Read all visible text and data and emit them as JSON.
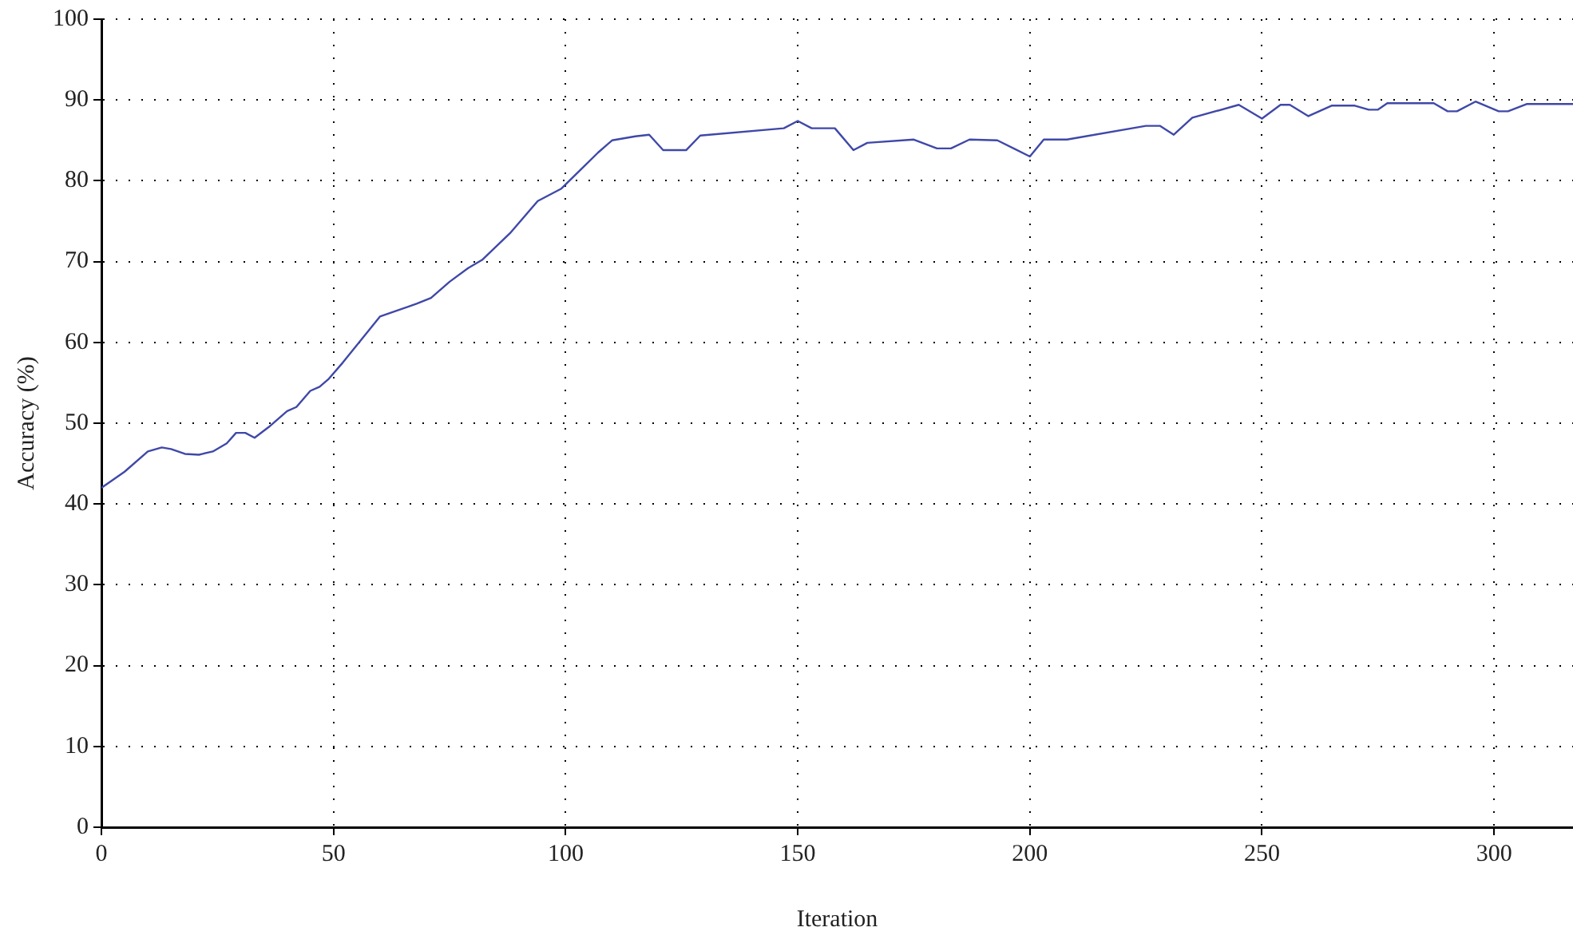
{
  "chart_data": {
    "type": "line",
    "xlabel": "Iteration",
    "ylabel": "Accuracy (%)",
    "x": [
      0,
      5,
      10,
      13,
      15,
      18,
      21,
      24,
      27,
      29,
      31,
      33,
      36,
      40,
      42,
      45,
      47,
      49,
      52,
      60,
      68,
      71,
      75,
      79,
      82,
      88,
      94,
      99,
      104,
      107,
      110,
      115,
      118,
      121,
      126,
      129,
      147,
      150,
      153,
      158,
      162,
      165,
      175,
      180,
      183,
      187,
      193,
      200,
      203,
      208,
      225,
      228,
      231,
      235,
      245,
      250,
      254,
      256,
      260,
      265,
      270,
      273,
      275,
      277,
      287,
      290,
      292,
      296,
      301,
      303,
      307,
      317
    ],
    "series": [
      {
        "color": "#3f48a8",
        "values": [
          42,
          44,
          46.5,
          47,
          46.8,
          46.2,
          46.1,
          46.5,
          47.5,
          48.8,
          48.8,
          48.2,
          49.5,
          51.5,
          52,
          54,
          54.5,
          55.5,
          57.5,
          63.2,
          64.8,
          65.5,
          67.5,
          69.2,
          70.2,
          73.5,
          77.5,
          79,
          81.8,
          83.5,
          85,
          85.5,
          85.7,
          83.8,
          83.8,
          85.6,
          86.5,
          87.4,
          86.5,
          86.5,
          83.8,
          84.7,
          85.1,
          84,
          84,
          85.1,
          85,
          83,
          85.1,
          85.1,
          86.8,
          86.8,
          85.7,
          87.8,
          89.4,
          87.7,
          89.4,
          89.4,
          88,
          89.3,
          89.3,
          88.8,
          88.8,
          89.6,
          89.6,
          88.6,
          88.6,
          89.8,
          88.6,
          88.6,
          89.5,
          89.5
        ]
      }
    ],
    "xlim": [
      0,
      317
    ],
    "xticks": [
      0,
      50,
      100,
      150,
      200,
      250,
      300
    ],
    "ylim": [
      0,
      100
    ],
    "yticks": [
      0,
      10,
      20,
      30,
      40,
      50,
      60,
      70,
      80,
      90,
      100
    ],
    "grid": true,
    "legend": false,
    "marker": "none",
    "line_style": "solid"
  }
}
